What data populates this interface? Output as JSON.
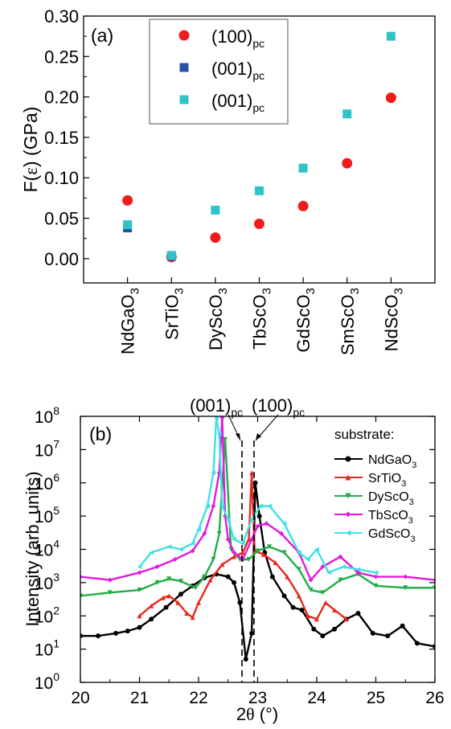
{
  "chart_data": [
    {
      "type": "scatter",
      "panel_label": "(a)",
      "ylabel_main": "F(",
      "ylabel_sym": "ε",
      "ylabel_tail": ") (GPa)",
      "ylim": [
        -0.03,
        0.3
      ],
      "yticks": [
        "0.00",
        "0.05",
        "0.10",
        "0.15",
        "0.20",
        "0.25",
        "0.30"
      ],
      "ytick_values": [
        0,
        0.05,
        0.1,
        0.15,
        0.2,
        0.25,
        0.3
      ],
      "categories": [
        {
          "main": "NdGaO",
          "sub": "3"
        },
        {
          "main": "SrTiO",
          "sub": "3"
        },
        {
          "main": "DyScO",
          "sub": "3"
        },
        {
          "main": "TbScO",
          "sub": "3"
        },
        {
          "main": "GdScO",
          "sub": "3"
        },
        {
          "main": "SmScO",
          "sub": "3"
        },
        {
          "main": "NdScO",
          "sub": "3"
        }
      ],
      "legend_position": "top-center",
      "series": [
        {
          "name": "(100)",
          "sub": "pc",
          "marker": "circle",
          "color": "#ee1c1c",
          "values": [
            0.072,
            0.002,
            0.026,
            0.043,
            0.065,
            0.118,
            0.199
          ]
        },
        {
          "name": "(001)",
          "sub": "pc",
          "marker": "square",
          "color": "#2a4fa8",
          "values": [
            0.038,
            0.003,
            null,
            null,
            null,
            null,
            null
          ]
        },
        {
          "name": "(001)",
          "sub": "pc",
          "marker": "square",
          "color": "#2fc3c8",
          "values": [
            0.042,
            0.004,
            0.06,
            0.084,
            0.112,
            0.179,
            0.275
          ]
        }
      ]
    },
    {
      "type": "line",
      "panel_label": "(b)",
      "xlabel_main": "2",
      "xlabel_sym": "θ",
      "xlabel_tail": " (°)",
      "ylabel": "Intensity (arb. units)",
      "yscale": "log",
      "xlim": [
        20,
        26
      ],
      "ylim": [
        1,
        100000000
      ],
      "xticks": [
        "20",
        "21",
        "22",
        "23",
        "24",
        "25",
        "26"
      ],
      "xtick_values": [
        20,
        21,
        22,
        23,
        24,
        25,
        26
      ],
      "yticks": [
        {
          "base": "10",
          "exp": "0",
          "v": 1
        },
        {
          "base": "10",
          "exp": "1",
          "v": 10
        },
        {
          "base": "10",
          "exp": "2",
          "v": 100
        },
        {
          "base": "10",
          "exp": "3",
          "v": 1000
        },
        {
          "base": "10",
          "exp": "4",
          "v": 10000
        },
        {
          "base": "10",
          "exp": "5",
          "v": 100000
        },
        {
          "base": "10",
          "exp": "6",
          "v": 1000000
        },
        {
          "base": "10",
          "exp": "7",
          "v": 10000000
        },
        {
          "base": "10",
          "exp": "8",
          "v": 100000000
        }
      ],
      "legend_title": "substrate:",
      "legend_position": "top-right",
      "annotations": [
        {
          "main": "(001)",
          "sub": "pc"
        },
        {
          "main": "(100)",
          "sub": "pc"
        }
      ],
      "reference_lines_x": [
        22.72,
        22.92
      ],
      "series": [
        {
          "name": "NdGaO",
          "sub": "3",
          "color": "#000000",
          "marker": "circle",
          "x": [
            20.0,
            20.3,
            20.6,
            20.8,
            21.0,
            21.2,
            21.45,
            21.7,
            21.9,
            22.1,
            22.3,
            22.5,
            22.6,
            22.7,
            22.8,
            22.9,
            22.96,
            23.03,
            23.12,
            23.25,
            23.45,
            23.6,
            23.75,
            23.95,
            24.1,
            24.3,
            24.5,
            24.7,
            24.95,
            25.2,
            25.45,
            25.7,
            26.0
          ],
          "y": [
            25,
            25,
            30,
            35,
            45,
            80,
            180,
            450,
            800,
            1400,
            1800,
            1500,
            1000,
            250,
            5,
            30,
            1000000,
            100000,
            8000,
            1500,
            400,
            180,
            150,
            40,
            25,
            40,
            80,
            120,
            30,
            25,
            50,
            15,
            12
          ]
        },
        {
          "name": "SrTiO",
          "sub": "3",
          "color": "#e8281e",
          "marker": "triangle",
          "x": [
            21.0,
            21.2,
            21.4,
            21.5,
            21.65,
            21.8,
            21.9,
            22.0,
            22.2,
            22.4,
            22.6,
            22.75,
            22.85,
            22.9,
            22.95,
            23.1,
            23.3,
            23.5,
            23.7,
            23.85,
            24.0,
            24.15,
            24.3,
            24.5
          ],
          "y": [
            100,
            200,
            350,
            400,
            250,
            120,
            90,
            250,
            1200,
            3500,
            6000,
            8000,
            20000,
            2000000,
            9000,
            7000,
            4000,
            1500,
            400,
            100,
            80,
            250,
            150,
            80
          ]
        },
        {
          "name": "DyScO",
          "sub": "3",
          "color": "#1fae46",
          "marker": "triangle-down",
          "x": [
            20.0,
            20.5,
            21.0,
            21.3,
            21.5,
            21.7,
            21.95,
            22.1,
            22.25,
            22.35,
            22.45,
            22.55,
            22.7,
            22.85,
            23.0,
            23.2,
            23.45,
            23.7,
            23.9,
            24.1,
            24.4,
            24.7,
            25.0,
            25.5,
            26.0
          ],
          "y": [
            400,
            500,
            600,
            1000,
            1300,
            1100,
            700,
            1500,
            5000,
            30000,
            20000000,
            10000,
            5000,
            5000,
            9000,
            12000,
            8000,
            2500,
            600,
            500,
            1200,
            1800,
            800,
            700,
            700
          ]
        },
        {
          "name": "TbScO",
          "sub": "3",
          "color": "#e21bdd",
          "marker": "diamond",
          "x": [
            20.0,
            20.5,
            21.0,
            21.3,
            21.6,
            21.9,
            22.1,
            22.25,
            22.35,
            22.4,
            22.45,
            22.5,
            22.6,
            22.75,
            22.9,
            23.0,
            23.15,
            23.4,
            23.7,
            23.9,
            24.1,
            24.4,
            24.7,
            25.0,
            25.5,
            26.0
          ],
          "y": [
            1500,
            1200,
            2000,
            3000,
            5000,
            9000,
            30000,
            200000,
            2000000,
            90000000,
            100000,
            20000,
            8000,
            5000,
            20000,
            50000,
            60000,
            30000,
            8000,
            1200,
            3000,
            6000,
            2000,
            1500,
            1500,
            1200
          ]
        },
        {
          "name": "GdScO",
          "sub": "3",
          "color": "#3fe0e6",
          "marker": "triangle-left",
          "x": [
            21.0,
            21.2,
            21.5,
            21.7,
            21.9,
            22.0,
            22.15,
            22.25,
            22.3,
            22.35,
            22.4,
            22.5,
            22.6,
            22.75,
            22.9,
            23.05,
            23.2,
            23.45,
            23.7,
            23.85,
            24.0,
            24.2,
            24.45,
            24.7,
            25.0
          ],
          "y": [
            3000,
            8000,
            12000,
            10000,
            15000,
            40000,
            200000,
            2000000,
            90000000,
            30000000,
            200000,
            80000,
            20000,
            15000,
            80000,
            200000,
            200000,
            60000,
            8000,
            5000,
            10000,
            2000,
            3000,
            2500,
            2000
          ]
        }
      ]
    }
  ]
}
